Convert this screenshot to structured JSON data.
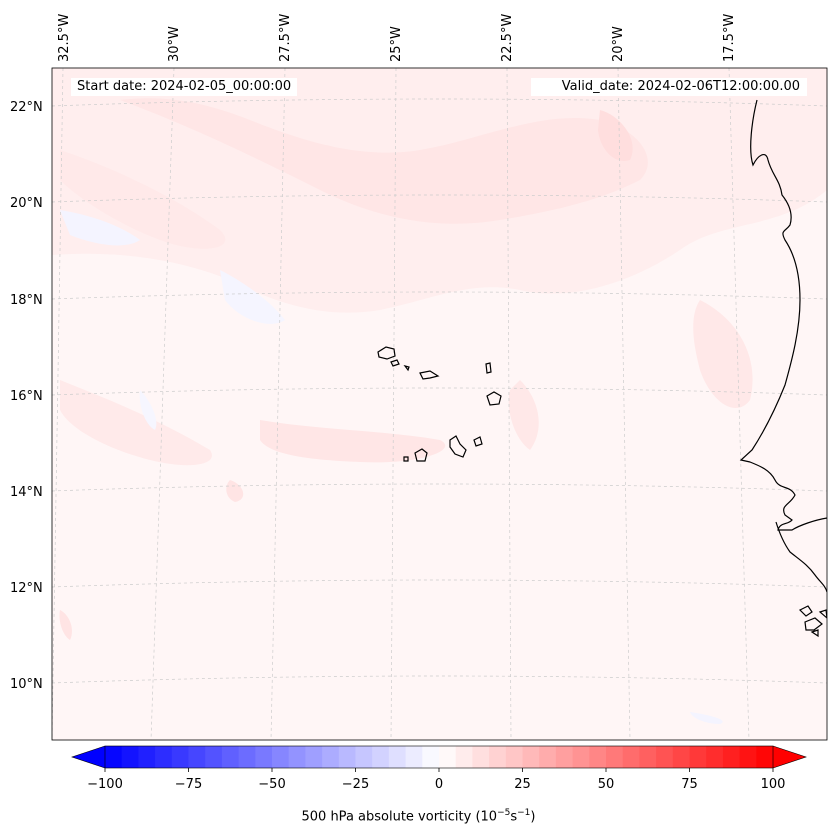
{
  "header": {
    "start_date": "Start date: 2024-02-05_00:00:00",
    "valid_date": "Valid_date: 2024-02-06T12:00:00.00"
  },
  "map": {
    "projection": "conic (Lambert-like)",
    "field": "500 hPa absolute vorticity",
    "lon_labels": [
      "32.5°W",
      "30°W",
      "27.5°W",
      "25°W",
      "22.5°W",
      "20°W",
      "17.5°W"
    ],
    "lat_labels": [
      "22°N",
      "20°N",
      "18°N",
      "16°N",
      "14°N",
      "12°N",
      "10°N"
    ],
    "gridlines": "dashed light gray",
    "features": [
      "Cape Verde islands",
      "West African coastline"
    ]
  },
  "colorbar": {
    "ticks": [
      "−100",
      "−75",
      "−50",
      "−25",
      "0",
      "25",
      "50",
      "75",
      "100"
    ],
    "min": -100,
    "max": 100,
    "levels": 41,
    "cmap": "bwr",
    "extend": "both",
    "label_text": "500 hPa absolute vorticity (10",
    "label_exp1": "−5",
    "label_mid": "s",
    "label_exp2": "−1",
    "label_end": ")"
  },
  "colors": {
    "background_field": "#fff6f6",
    "weak_positive": "#ffe6e6",
    "weak_negative": "#f3f3ff",
    "grid": "#cccccc",
    "coast": "#000000"
  }
}
